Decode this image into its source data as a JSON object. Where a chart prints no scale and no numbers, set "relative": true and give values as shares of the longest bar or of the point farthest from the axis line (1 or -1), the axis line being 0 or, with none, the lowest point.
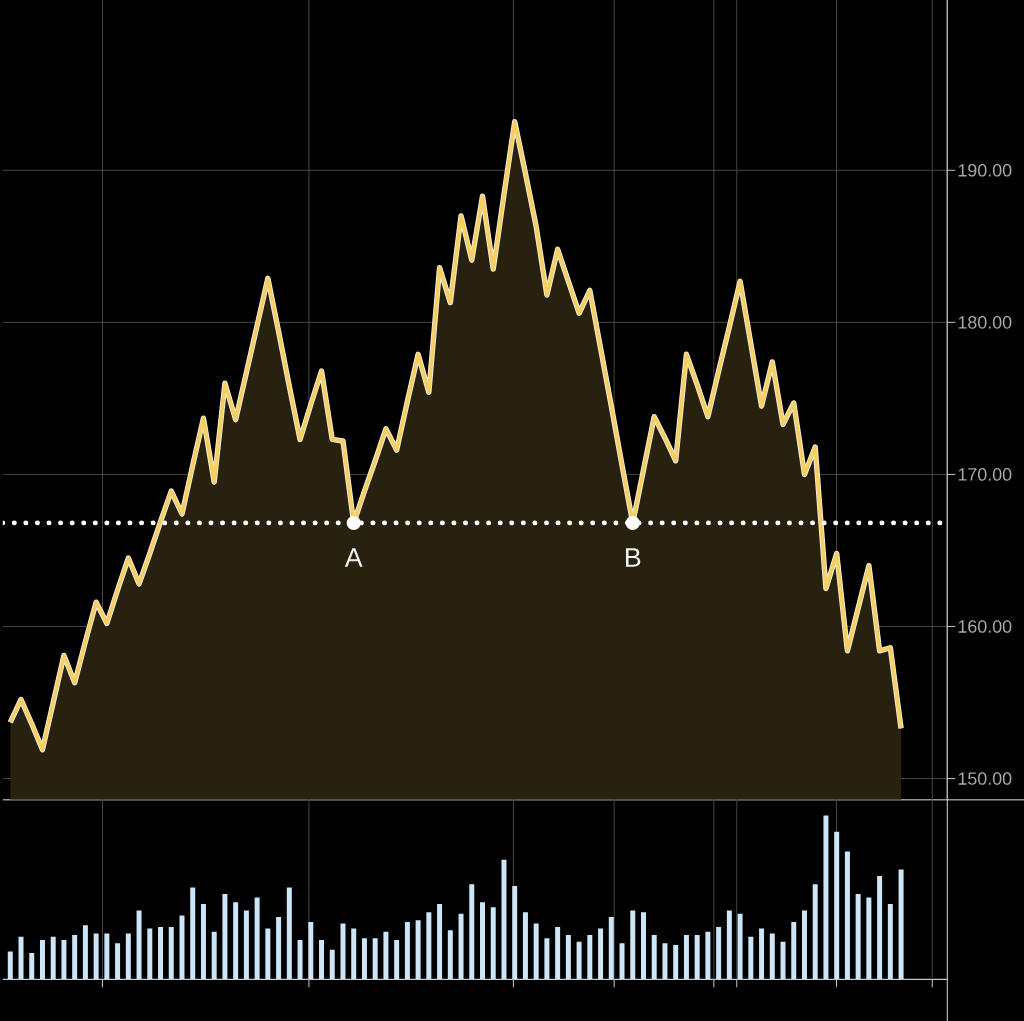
{
  "chart_data": [
    {
      "type": "area",
      "categories": [
        null,
        null,
        null,
        null,
        null,
        null,
        null,
        null,
        null,
        null,
        null,
        null,
        null,
        null,
        null,
        null,
        null,
        null,
        null,
        null,
        null,
        null,
        null,
        null,
        null,
        null,
        null,
        null,
        null,
        null,
        null,
        null,
        null,
        null,
        null,
        null,
        null,
        null,
        null,
        null,
        null,
        null,
        null,
        null,
        null,
        null,
        null,
        null,
        null,
        null,
        null,
        null,
        null,
        null,
        null,
        null,
        null,
        null,
        null,
        null,
        null,
        null,
        null,
        null,
        null,
        null,
        null,
        null,
        null,
        null,
        null,
        null,
        null,
        null,
        null,
        null,
        null,
        null,
        null,
        null,
        null,
        null,
        null,
        null
      ],
      "series": [
        {
          "color": "#f5cf63",
          "values": [
            153.7,
            155.2,
            153.6,
            151.9,
            155.0,
            158.1,
            156.3,
            159.0,
            161.6,
            160.2,
            162.4,
            164.5,
            162.8,
            164.8,
            166.9,
            168.9,
            167.4,
            170.6,
            173.7,
            169.5,
            176.0,
            173.6,
            176.7,
            179.8,
            182.9,
            179.4,
            175.8,
            172.3,
            174.6,
            176.8,
            172.3,
            172.2,
            166.8,
            168.9,
            170.9,
            173.0,
            171.6,
            174.8,
            177.9,
            175.4,
            183.6,
            181.3,
            187.0,
            184.1,
            188.3,
            183.5,
            188.4,
            193.2,
            189.8,
            186.3,
            181.8,
            184.8,
            182.7,
            180.6,
            182.1,
            178.3,
            174.5,
            170.6,
            166.8,
            170.3,
            173.8,
            172.4,
            170.9,
            177.9,
            175.9,
            173.8,
            176.8,
            179.7,
            182.7,
            178.6,
            174.5,
            177.4,
            173.3,
            174.7,
            170.0,
            171.8,
            162.5,
            164.8,
            158.4,
            161.2,
            164.0,
            158.4,
            158.6,
            153.3
          ]
        }
      ],
      "line_style": "solid",
      "ylim": [
        148.6,
        201.2
      ],
      "yticks": [
        {
          "value": 150,
          "label": "150.00"
        },
        {
          "value": 160,
          "label": "160.00"
        },
        {
          "value": 170,
          "label": "170.00"
        },
        {
          "value": 180,
          "label": "180.00"
        },
        {
          "value": 190,
          "label": "190.00"
        }
      ],
      "tick_labels": "y",
      "grid": true,
      "ref_lines": [
        {
          "axis": "y",
          "value": 166.8,
          "color": "#ffffff",
          "line_style": "dotted"
        }
      ],
      "annotations": [
        {
          "text": "A",
          "y": 166.8
        },
        {
          "text": "B",
          "y": 166.8
        }
      ]
    },
    {
      "type": "bar",
      "relative": true,
      "color": "#cde6f7",
      "categories": [
        null,
        null,
        null,
        null,
        null,
        null,
        null,
        null,
        null,
        null,
        null,
        null,
        null,
        null,
        null,
        null,
        null,
        null,
        null,
        null,
        null,
        null,
        null,
        null,
        null,
        null,
        null,
        null,
        null,
        null,
        null,
        null,
        null,
        null,
        null,
        null,
        null,
        null,
        null,
        null,
        null,
        null,
        null,
        null,
        null,
        null,
        null,
        null,
        null,
        null,
        null,
        null,
        null,
        null,
        null,
        null,
        null,
        null,
        null,
        null,
        null,
        null,
        null,
        null,
        null,
        null,
        null,
        null,
        null,
        null,
        null,
        null,
        null,
        null,
        null,
        null,
        null,
        null,
        null,
        null,
        null,
        null,
        null,
        null
      ],
      "values": [
        0.17,
        0.26,
        0.16,
        0.24,
        0.26,
        0.24,
        0.27,
        0.33,
        0.28,
        0.28,
        0.22,
        0.28,
        0.42,
        0.31,
        0.32,
        0.32,
        0.39,
        0.56,
        0.46,
        0.29,
        0.52,
        0.47,
        0.42,
        0.5,
        0.31,
        0.38,
        0.56,
        0.24,
        0.35,
        0.24,
        0.18,
        0.34,
        0.31,
        0.25,
        0.25,
        0.29,
        0.24,
        0.35,
        0.36,
        0.41,
        0.46,
        0.3,
        0.4,
        0.58,
        0.47,
        0.44,
        0.73,
        0.57,
        0.41,
        0.34,
        0.25,
        0.32,
        0.27,
        0.23,
        0.27,
        0.31,
        0.38,
        0.22,
        0.42,
        0.41,
        0.27,
        0.22,
        0.21,
        0.27,
        0.27,
        0.29,
        0.32,
        0.42,
        0.4,
        0.26,
        0.31,
        0.28,
        0.23,
        0.35,
        0.42,
        0.58,
        1,
        0.9,
        0.78,
        0.52,
        0.5,
        0.63,
        0.46,
        0.67
      ],
      "tick_labels": false,
      "grid": "x"
    }
  ]
}
